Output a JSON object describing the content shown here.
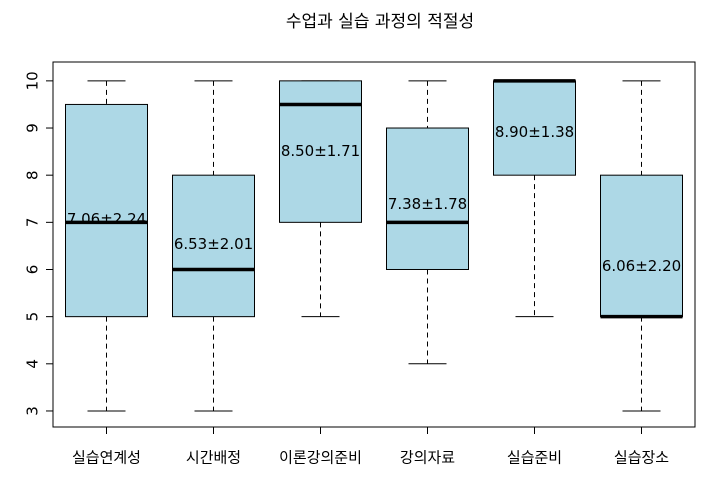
{
  "chart_data": {
    "type": "boxplot",
    "title": "수업과 실습 과정의 적절성",
    "categories": [
      "실습연계성",
      "시간배정",
      "이론강의준비",
      "강의자료",
      "실습준비",
      "실습장소"
    ],
    "min": [
      3,
      3,
      5,
      4,
      5,
      3
    ],
    "q1": [
      5,
      5,
      7,
      6,
      8,
      5
    ],
    "median": [
      7,
      6,
      9.5,
      7,
      10,
      5
    ],
    "q3": [
      9.5,
      8,
      10,
      9,
      10,
      8
    ],
    "max": [
      10,
      10,
      10,
      10,
      10,
      10
    ],
    "means": [
      7.06,
      6.53,
      8.5,
      7.38,
      8.9,
      6.06
    ],
    "mean_labels": [
      "7.06±2.24",
      "6.53±2.01",
      "8.50±1.71",
      "7.38±1.78",
      "8.90±1.38",
      "6.06±2.20"
    ],
    "color": "#add8e6",
    "ylim": [
      2.66,
      10.4
    ],
    "yticks": [
      3,
      4,
      5,
      6,
      7,
      8,
      9,
      10
    ]
  }
}
